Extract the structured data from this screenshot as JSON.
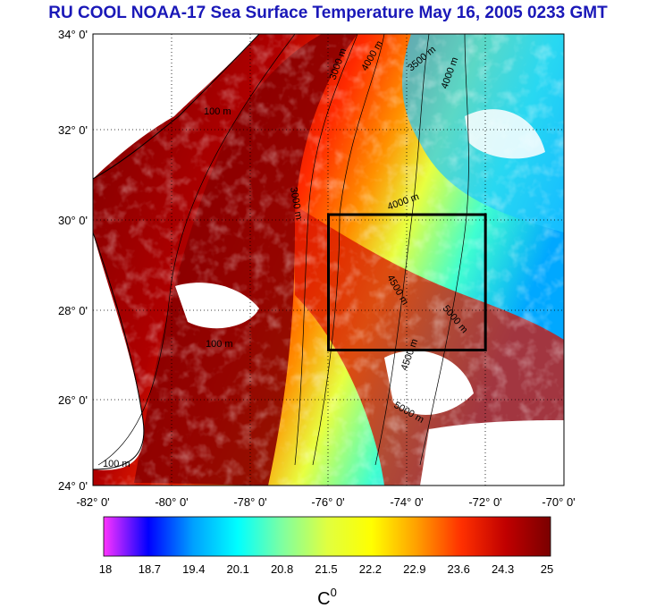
{
  "title": "RU COOL  NOAA-17 Sea Surface Temperature May 16, 2005 0233 GMT",
  "map": {
    "lat_labels": [
      "34° 0'",
      "32° 0'",
      "30° 0'",
      "28° 0'",
      "26° 0'",
      "24° 0'"
    ],
    "lon_labels": [
      "-82° 0'",
      "-80° 0'",
      "-78° 0'",
      "-76° 0'",
      "-74° 0'",
      "-72° 0'",
      "-70° 0'"
    ],
    "lat_range": [
      24,
      34
    ],
    "lon_range": [
      -82,
      -70
    ],
    "grid": "dotted",
    "contour_labels": [
      "100 m",
      "3000 m",
      "3500 m",
      "4000 m",
      "4500 m",
      "5000 m"
    ],
    "study_box": {
      "lon": [
        -76,
        -72
      ],
      "lat": [
        27,
        30
      ]
    }
  },
  "colorbar": {
    "ticks": [
      "18",
      "18.7",
      "19.4",
      "20.1",
      "20.8",
      "21.5",
      "22.2",
      "22.9",
      "23.6",
      "24.3",
      "25"
    ],
    "unit": "C",
    "unit_sup": "0",
    "colors": [
      "#ff33ff",
      "#0000ff",
      "#00a0ff",
      "#00ffff",
      "#7fffa0",
      "#e0ff40",
      "#ffff00",
      "#ffa000",
      "#ff3000",
      "#c00000",
      "#7a0000"
    ]
  }
}
